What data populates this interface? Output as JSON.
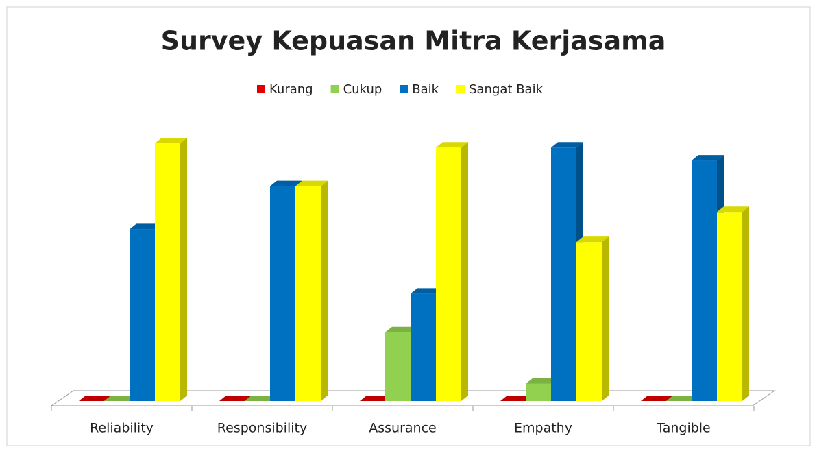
{
  "chart_data": {
    "type": "bar3d",
    "title": "Survey Kepuasan Mitra Kerjasama",
    "categories": [
      "Reliability",
      "Responsibility",
      "Assurance",
      "Empathy",
      "Tangible"
    ],
    "series": [
      {
        "name": "Kurang",
        "color": "#e00000",
        "values": [
          0,
          0,
          0,
          0,
          0
        ]
      },
      {
        "name": "Cukup",
        "color": "#92d050",
        "values": [
          0,
          0,
          16,
          4,
          0
        ]
      },
      {
        "name": "Baik",
        "color": "#0070c0",
        "values": [
          40,
          50,
          25,
          59,
          56
        ]
      },
      {
        "name": "Sangat Baik",
        "color": "#ffff00",
        "values": [
          60,
          50,
          59,
          37,
          44
        ]
      }
    ]
  }
}
